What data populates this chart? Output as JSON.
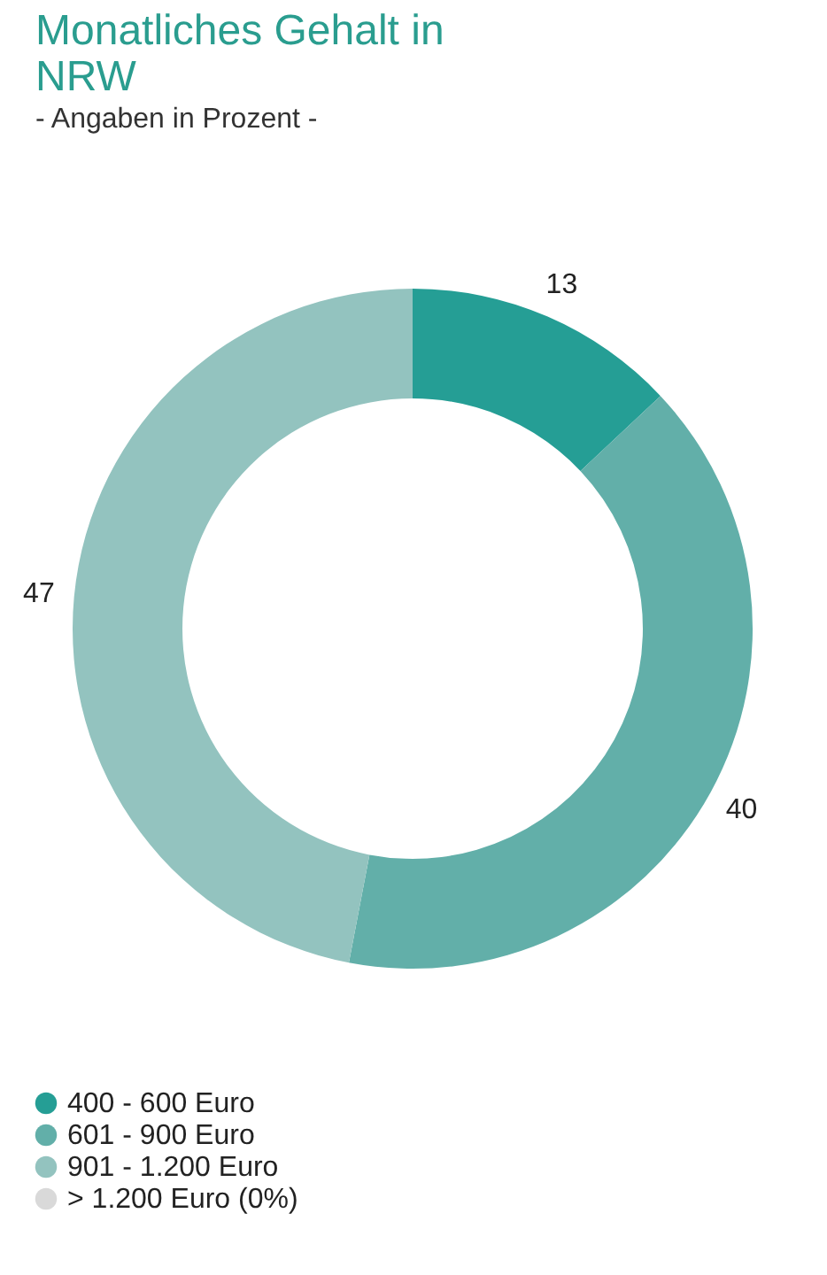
{
  "chart_data": {
    "type": "donut",
    "title": "Monatliches Gehalt in NRW",
    "subtitle": "- Angaben in Prozent -",
    "categories": [
      "400 - 600 Euro",
      "601 - 900  Euro",
      "901 - 1.200 Euro",
      "> 1.200 Euro (0%)"
    ],
    "values": [
      13,
      40,
      47,
      0
    ],
    "colors": [
      "#259e95",
      "#62afa9",
      "#93c3bf",
      "#d9d9d9"
    ],
    "value_labels": [
      "13",
      "40",
      "47",
      null
    ],
    "legend": "bottom left"
  }
}
